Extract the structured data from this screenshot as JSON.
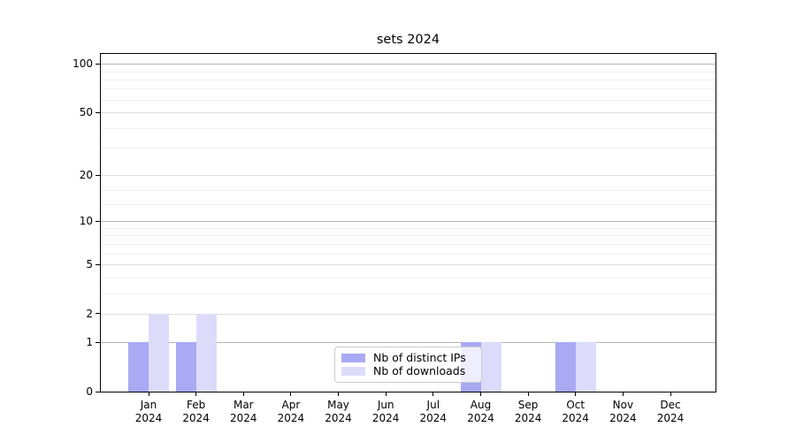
{
  "chart_data": {
    "type": "bar",
    "title": "sets 2024",
    "categories": [
      "Jan",
      "Feb",
      "Mar",
      "Apr",
      "May",
      "Jun",
      "Jul",
      "Aug",
      "Sep",
      "Oct",
      "Nov",
      "Dec"
    ],
    "category_year": "2024",
    "series": [
      {
        "name": "Nb of distinct IPs",
        "color": "#a9a9f4",
        "values": [
          1,
          1,
          0,
          0,
          0,
          0,
          0,
          1,
          0,
          1,
          0,
          0
        ]
      },
      {
        "name": "Nb of downloads",
        "color": "#dcdcfa",
        "values": [
          2,
          2,
          0,
          0,
          0,
          0,
          0,
          1,
          0,
          1,
          0,
          0
        ]
      }
    ],
    "y_axis": {
      "scale": "log10(1+x)",
      "ticks": [
        0,
        1,
        2,
        5,
        10,
        20,
        50,
        100
      ],
      "max_value": 115,
      "emphasized_gridlines": [
        1,
        10,
        100
      ],
      "minor_gridlines": [
        3,
        4,
        6,
        7,
        8,
        9,
        13,
        16,
        30,
        40,
        60,
        70,
        80,
        90
      ]
    },
    "x_axis": {
      "label_lines": 2
    },
    "grid": true,
    "legend_position": "lower center"
  }
}
